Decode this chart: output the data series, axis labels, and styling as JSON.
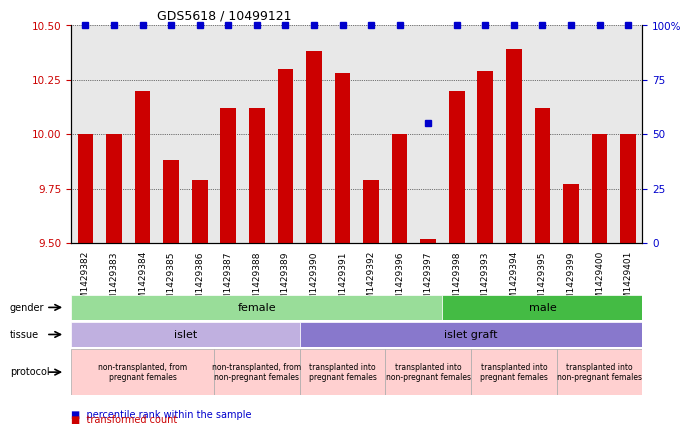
{
  "title": "GDS5618 / 10499121",
  "samples": [
    "GSM1429382",
    "GSM1429383",
    "GSM1429384",
    "GSM1429385",
    "GSM1429386",
    "GSM1429387",
    "GSM1429388",
    "GSM1429389",
    "GSM1429390",
    "GSM1429391",
    "GSM1429392",
    "GSM1429396",
    "GSM1429397",
    "GSM1429398",
    "GSM1429393",
    "GSM1429394",
    "GSM1429395",
    "GSM1429399",
    "GSM1429400",
    "GSM1429401"
  ],
  "bar_values": [
    10.0,
    10.0,
    10.2,
    9.88,
    9.79,
    10.12,
    10.12,
    10.3,
    10.38,
    10.28,
    9.79,
    10.0,
    9.52,
    10.2,
    10.29,
    10.39,
    10.12,
    9.77,
    10.0,
    10.0
  ],
  "percentile_values": [
    100,
    100,
    100,
    100,
    100,
    100,
    100,
    100,
    100,
    100,
    100,
    100,
    55,
    100,
    100,
    100,
    100,
    100,
    100,
    100
  ],
  "ylim_left": [
    9.5,
    10.5
  ],
  "ylim_right": [
    0,
    100
  ],
  "yticks_left": [
    9.5,
    9.75,
    10.0,
    10.25,
    10.5
  ],
  "yticks_right": [
    0,
    25,
    50,
    75,
    100
  ],
  "bar_color": "#cc0000",
  "dot_color": "#0000cc",
  "chart_bg": "#e8e8e8",
  "gender_female": {
    "start": 0,
    "end": 13,
    "color": "#99dd99",
    "label": "female"
  },
  "gender_male": {
    "start": 13,
    "end": 20,
    "color": "#44bb44",
    "label": "male"
  },
  "tissue_islet": {
    "start": 0,
    "end": 8,
    "color": "#c0b0e0",
    "label": "islet"
  },
  "tissue_islet_graft": {
    "start": 8,
    "end": 20,
    "color": "#8878cc",
    "label": "islet graft"
  },
  "protocol_data": [
    {
      "start": 0,
      "end": 5,
      "color": "#ffd0d0",
      "label": "non-transplanted, from\npregnant females"
    },
    {
      "start": 5,
      "end": 8,
      "color": "#ffd0d0",
      "label": "non-transplanted, from\nnon-pregnant females"
    },
    {
      "start": 8,
      "end": 11,
      "color": "#ffd0d0",
      "label": "transplanted into\npregnant females"
    },
    {
      "start": 11,
      "end": 14,
      "color": "#ffd0d0",
      "label": "transplanted into\nnon-pregnant females"
    },
    {
      "start": 14,
      "end": 17,
      "color": "#ffd0d0",
      "label": "transplanted into\npregnant females"
    },
    {
      "start": 17,
      "end": 20,
      "color": "#ffd0d0",
      "label": "transplanted into\nnon-pregnant females"
    }
  ],
  "row_labels": [
    "gender",
    "tissue",
    "protocol"
  ],
  "legend_dot_label": "percentile rank within the sample",
  "legend_bar_label": "transformed count"
}
